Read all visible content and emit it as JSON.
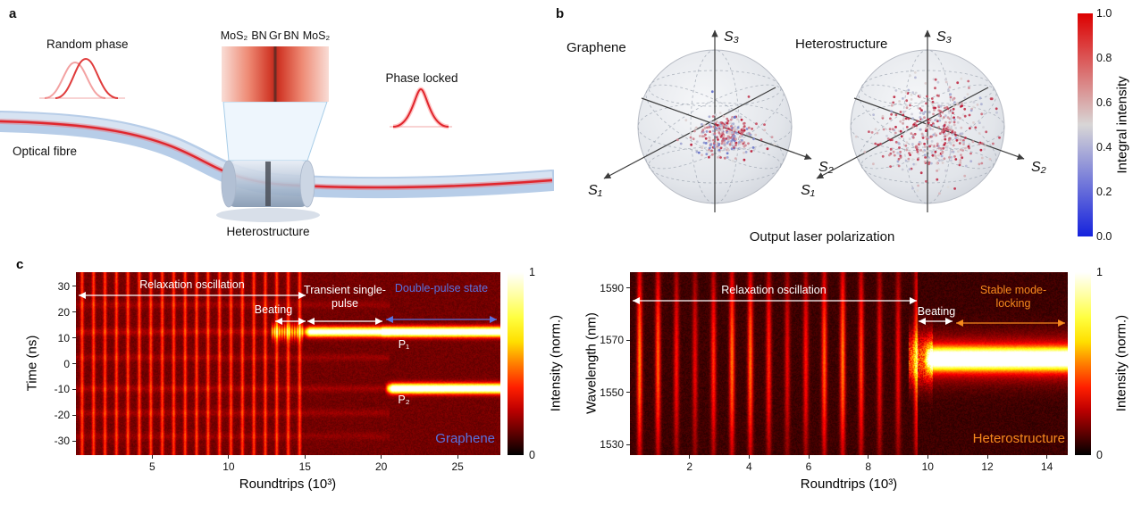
{
  "panels": {
    "a": {
      "label": "a",
      "random_phase": "Random phase",
      "optical_fibre": "Optical fibre",
      "phase_locked": "Phase locked",
      "device": "Heterostructure",
      "layers": [
        "MoS₂",
        "BN",
        "Gr",
        "BN",
        "MoS₂"
      ]
    },
    "b": {
      "label": "b",
      "sphere_left_title": "Graphene",
      "sphere_right_title": "Heterostructure",
      "axis_s1": "S₁",
      "axis_s2": "S₂",
      "axis_s3": "S₃",
      "caption": "Output laser polarization",
      "colorbar": {
        "label": "Integral intensity",
        "ticks": [
          "1.0",
          "0.8",
          "0.6",
          "0.4",
          "0.2",
          "0.0"
        ],
        "color_top": "#dd0000",
        "color_mid": "#d8d6d6",
        "color_bottom": "#1522dd"
      },
      "scatter": {
        "seed": 7,
        "clusters": [
          {
            "dx": 12,
            "dy": 10,
            "sx": 17,
            "sy": 13,
            "count": 300,
            "red_bias": 0.1
          },
          {
            "dx": 8,
            "dy": 4,
            "sx": 33,
            "sy": 26,
            "count": 450,
            "red_bias": 0.3
          }
        ]
      }
    },
    "c": {
      "label": "c"
    }
  },
  "chart_data": [
    {
      "type": "heatmap",
      "name": "Graphene temporal evolution",
      "xlabel": "Roundtrips (10³)",
      "ylabel": "Time (ns)",
      "xlim": [
        0,
        27.8
      ],
      "ylim": [
        -35.5,
        35.5
      ],
      "xticks": [
        5,
        10,
        15,
        20,
        25
      ],
      "yticks": [
        30,
        20,
        10,
        0,
        -10,
        -20,
        -30
      ],
      "colorbar": {
        "label": "Intensity (norm.)",
        "tick_top": "1",
        "tick_bottom": "0",
        "colormap": "hot"
      },
      "series_label": "Graphene",
      "accent_color": "#5872e0",
      "annotations": [
        {
          "text": "Relaxation oscillation",
          "color": "#ffffff",
          "x_range_units": [
            0.2,
            14.9
          ]
        },
        {
          "text": "Beating",
          "color": "#ffffff",
          "x_range_units": [
            13.0,
            15.0
          ]
        },
        {
          "text": "Transient single-pulse",
          "color": "#ffffff",
          "x_range_units": [
            15.0,
            20.0
          ]
        },
        {
          "text": "Double-pulse state",
          "color": "#5872e0",
          "x_range_units": [
            20.2,
            27.6
          ]
        },
        {
          "text": "P₁",
          "color": "#ffffff",
          "at": {
            "x": 21.5,
            "y": 6
          }
        },
        {
          "text": "P₂",
          "color": "#ffffff",
          "at": {
            "x": 21.5,
            "y": -14.5
          }
        }
      ],
      "features": {
        "base": 0.12,
        "stripe_period": 0.75,
        "stripes_end": 14.8,
        "traces": [
          [
            12.5,
            0.07
          ],
          [
            23,
            0.045
          ],
          [
            2.5,
            0.05
          ],
          [
            -9.5,
            0.06
          ],
          [
            -19,
            0.05
          ],
          [
            -28,
            0.04
          ]
        ],
        "beating": {
          "x_start": 12.8,
          "x_end": 14.9,
          "y": 12.5
        },
        "pulses": [
          {
            "y": 12.5,
            "x_start": 14.8
          },
          {
            "y": -9.5,
            "x_start": 20.2
          }
        ]
      }
    },
    {
      "type": "heatmap",
      "name": "Heterostructure spectral evolution",
      "xlabel": "Roundtrips (10³)",
      "ylabel": "Wavelength (nm)",
      "xlim": [
        0,
        14.7
      ],
      "ylim": [
        1526,
        1596
      ],
      "xticks": [
        2,
        4,
        6,
        8,
        10,
        12,
        14
      ],
      "yticks": [
        1590,
        1570,
        1550,
        1530
      ],
      "colorbar": {
        "label": "Intensity (norm.)",
        "tick_top": "1",
        "tick_bottom": "0",
        "colormap": "hot"
      },
      "series_label": "Heterostructure",
      "accent_color": "#f78a1d",
      "annotations": [
        {
          "text": "Relaxation oscillation",
          "color": "#ffffff",
          "x_range_units": [
            0.2,
            9.6
          ]
        },
        {
          "text": "Beating",
          "color": "#ffffff",
          "x_range_units": [
            9.7,
            10.8
          ]
        },
        {
          "text": "Stable mode-locking",
          "color": "#f78a1d",
          "x_range_units": [
            11.0,
            14.5
          ]
        }
      ],
      "features": {
        "base": 0.05,
        "stripe_period": 0.62,
        "stripes_end": 9.65,
        "stripe_center_y": 1562,
        "beating": {
          "x_start": 9.35,
          "x_end": 10.15,
          "y": 1563
        },
        "band": {
          "y": 1563,
          "x_start": 9.85,
          "sigma": 2.6
        },
        "pulses": []
      }
    }
  ]
}
